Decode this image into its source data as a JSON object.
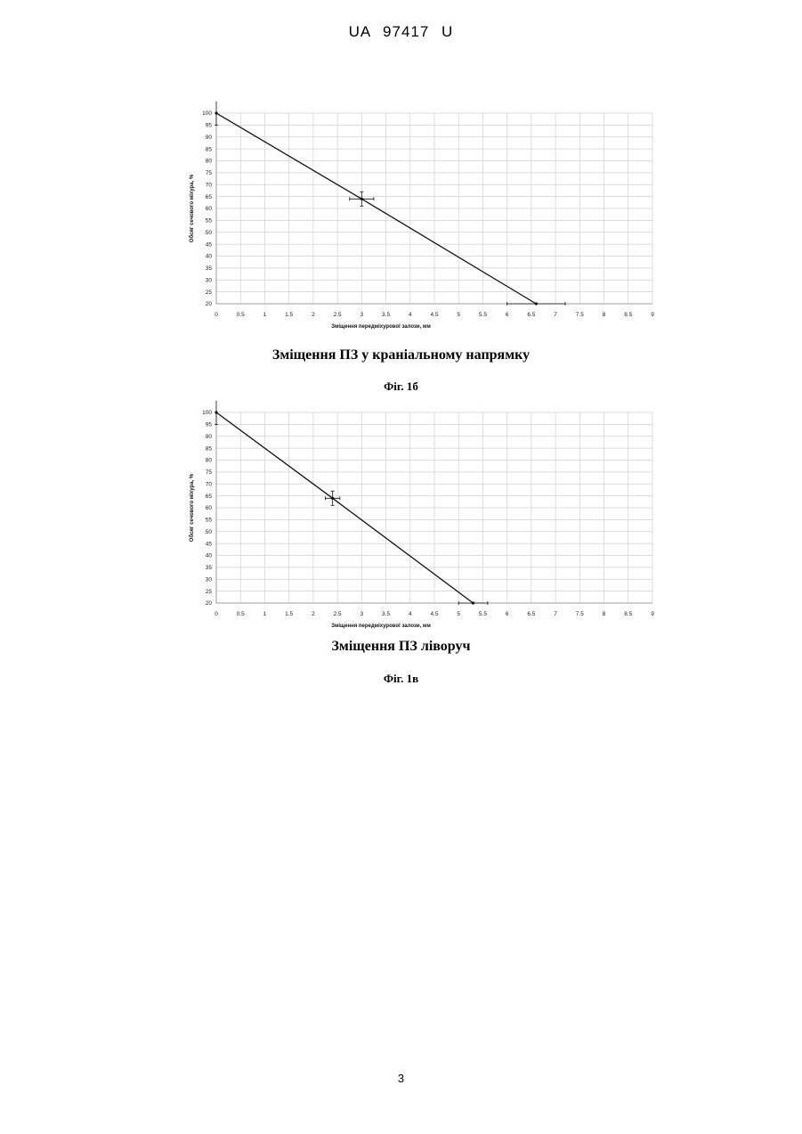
{
  "document": {
    "doc_id": "UA   97417   U",
    "page_number": "3"
  },
  "figures": [
    {
      "caption": "Зміщення ПЗ у краніальному напрямку",
      "label": "Фіг. 1б"
    },
    {
      "caption": "Зміщення ПЗ ліворуч",
      "label": "Фіг. 1в"
    }
  ],
  "chart_data": [
    {
      "type": "line",
      "title": "",
      "xlabel": "Зміщення передміхурової залози, мм",
      "ylabel": "Обсяг сечового міхура, %",
      "xlim": [
        0,
        9
      ],
      "ylim": [
        20,
        100
      ],
      "x_ticks": [
        "0",
        "0.5",
        "1",
        "1.5",
        "2",
        "2.5",
        "3",
        "3.5",
        "4",
        "4.5",
        "5",
        "5.5",
        "6",
        "6.5",
        "7",
        "7.5",
        "8",
        "8.5",
        "9"
      ],
      "y_ticks": [
        "20",
        "25",
        "30",
        "35",
        "40",
        "45",
        "50",
        "55",
        "60",
        "65",
        "70",
        "75",
        "80",
        "85",
        "90",
        "95",
        "100"
      ],
      "grid": true,
      "legend": "none",
      "series": [
        {
          "x": [
            0,
            3,
            6.6
          ],
          "y": [
            100,
            64,
            20
          ],
          "x_err": [
            0,
            0.25,
            0.6
          ],
          "y_err": [
            5,
            3,
            0
          ]
        }
      ]
    },
    {
      "type": "line",
      "title": "",
      "xlabel": "Зміщення передміхурової залози, мм",
      "ylabel": "Обсяг сечового міхура, %",
      "xlim": [
        0,
        9
      ],
      "ylim": [
        20,
        100
      ],
      "x_ticks": [
        "0",
        "0.5",
        "1",
        "1.5",
        "2",
        "2.5",
        "3",
        "3.5",
        "4",
        "4.5",
        "5",
        "5.5",
        "6",
        "6.5",
        "7",
        "7.5",
        "8",
        "8.5",
        "9"
      ],
      "y_ticks": [
        "20",
        "25",
        "30",
        "35",
        "40",
        "45",
        "50",
        "55",
        "60",
        "65",
        "70",
        "75",
        "80",
        "85",
        "90",
        "95",
        "100"
      ],
      "grid": true,
      "legend": "none",
      "series": [
        {
          "x": [
            0,
            2.4,
            5.3
          ],
          "y": [
            100,
            64,
            20
          ],
          "x_err": [
            0,
            0.15,
            0.3
          ],
          "y_err": [
            5,
            3,
            0
          ]
        }
      ]
    }
  ]
}
